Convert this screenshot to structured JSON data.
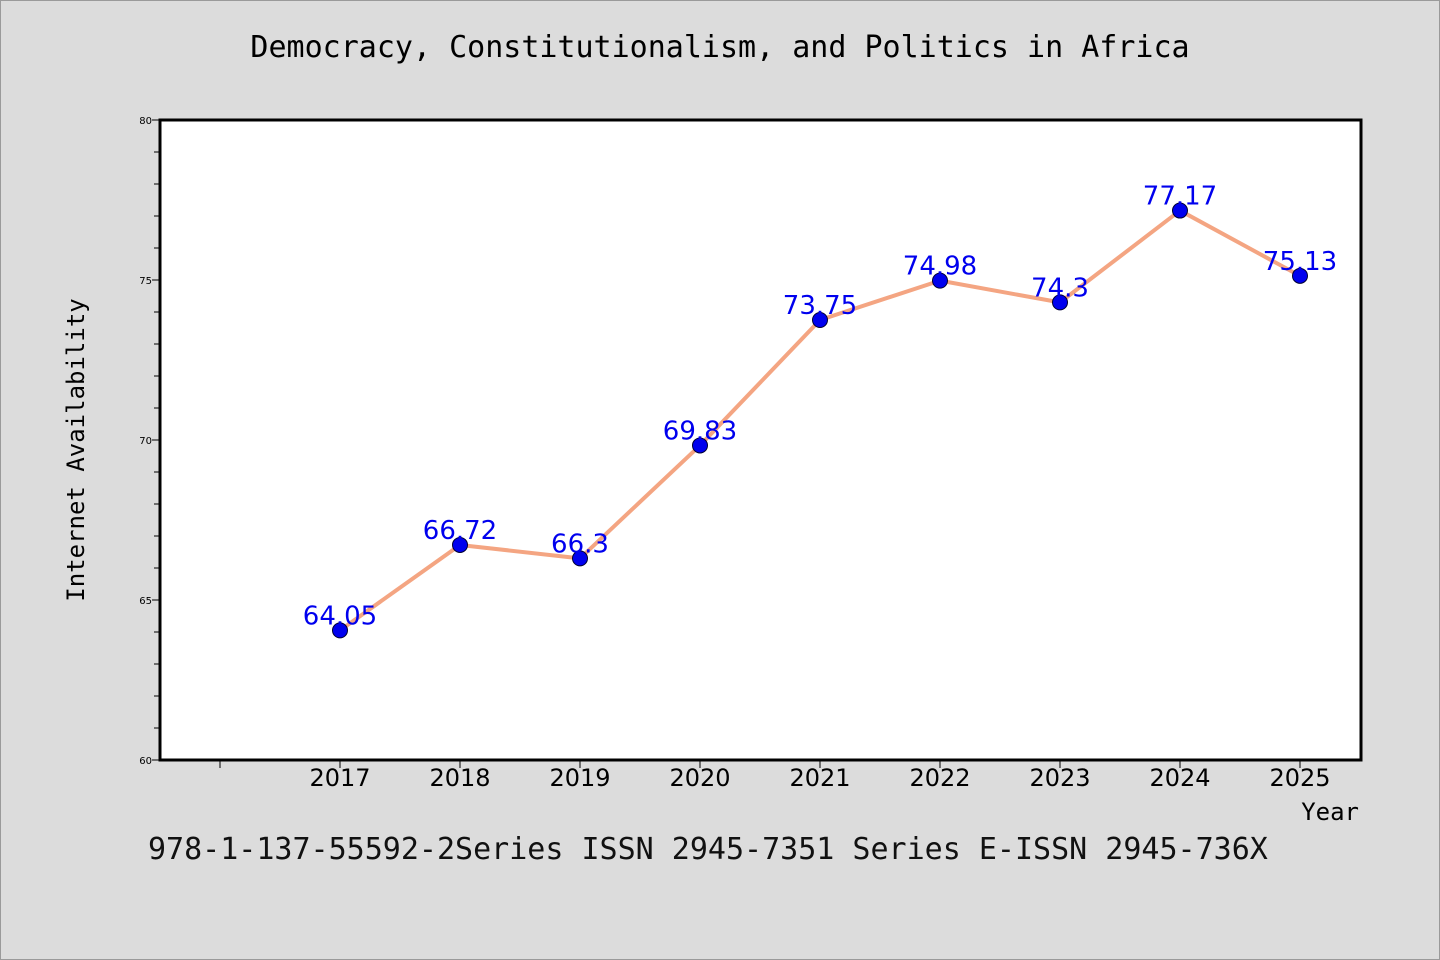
{
  "title": "Democracy, Constitutionalism, and Politics in Africa",
  "footer": "978-1-137-55592-2Series ISSN 2945-7351 Series E-ISSN 2945-736X",
  "colors": {
    "background": "#dcdcdc",
    "plot_background": "#ffffff",
    "line": "#f4a582",
    "marker": "#0000ee",
    "data_label": "#0000ee"
  },
  "chart_data": {
    "type": "line",
    "title": "Democracy, Constitutionalism, and Politics in Africa",
    "xlabel": "Year",
    "ylabel": "Internet Availability",
    "categories": [
      "2017",
      "2018",
      "2019",
      "2020",
      "2021",
      "2022",
      "2023",
      "2024",
      "2025"
    ],
    "values": [
      64.05,
      66.72,
      66.3,
      69.83,
      73.75,
      74.98,
      74.3,
      77.17,
      75.13
    ],
    "data_labels": [
      "64.05",
      "66.72",
      "66.3",
      "69.83",
      "73.75",
      "74.98",
      "74.3",
      "77.17",
      "75.13"
    ],
    "ylim": [
      60,
      80
    ],
    "yticks": [
      "60",
      "65",
      "70",
      "75",
      "80"
    ],
    "grid": false,
    "legend": "none"
  }
}
